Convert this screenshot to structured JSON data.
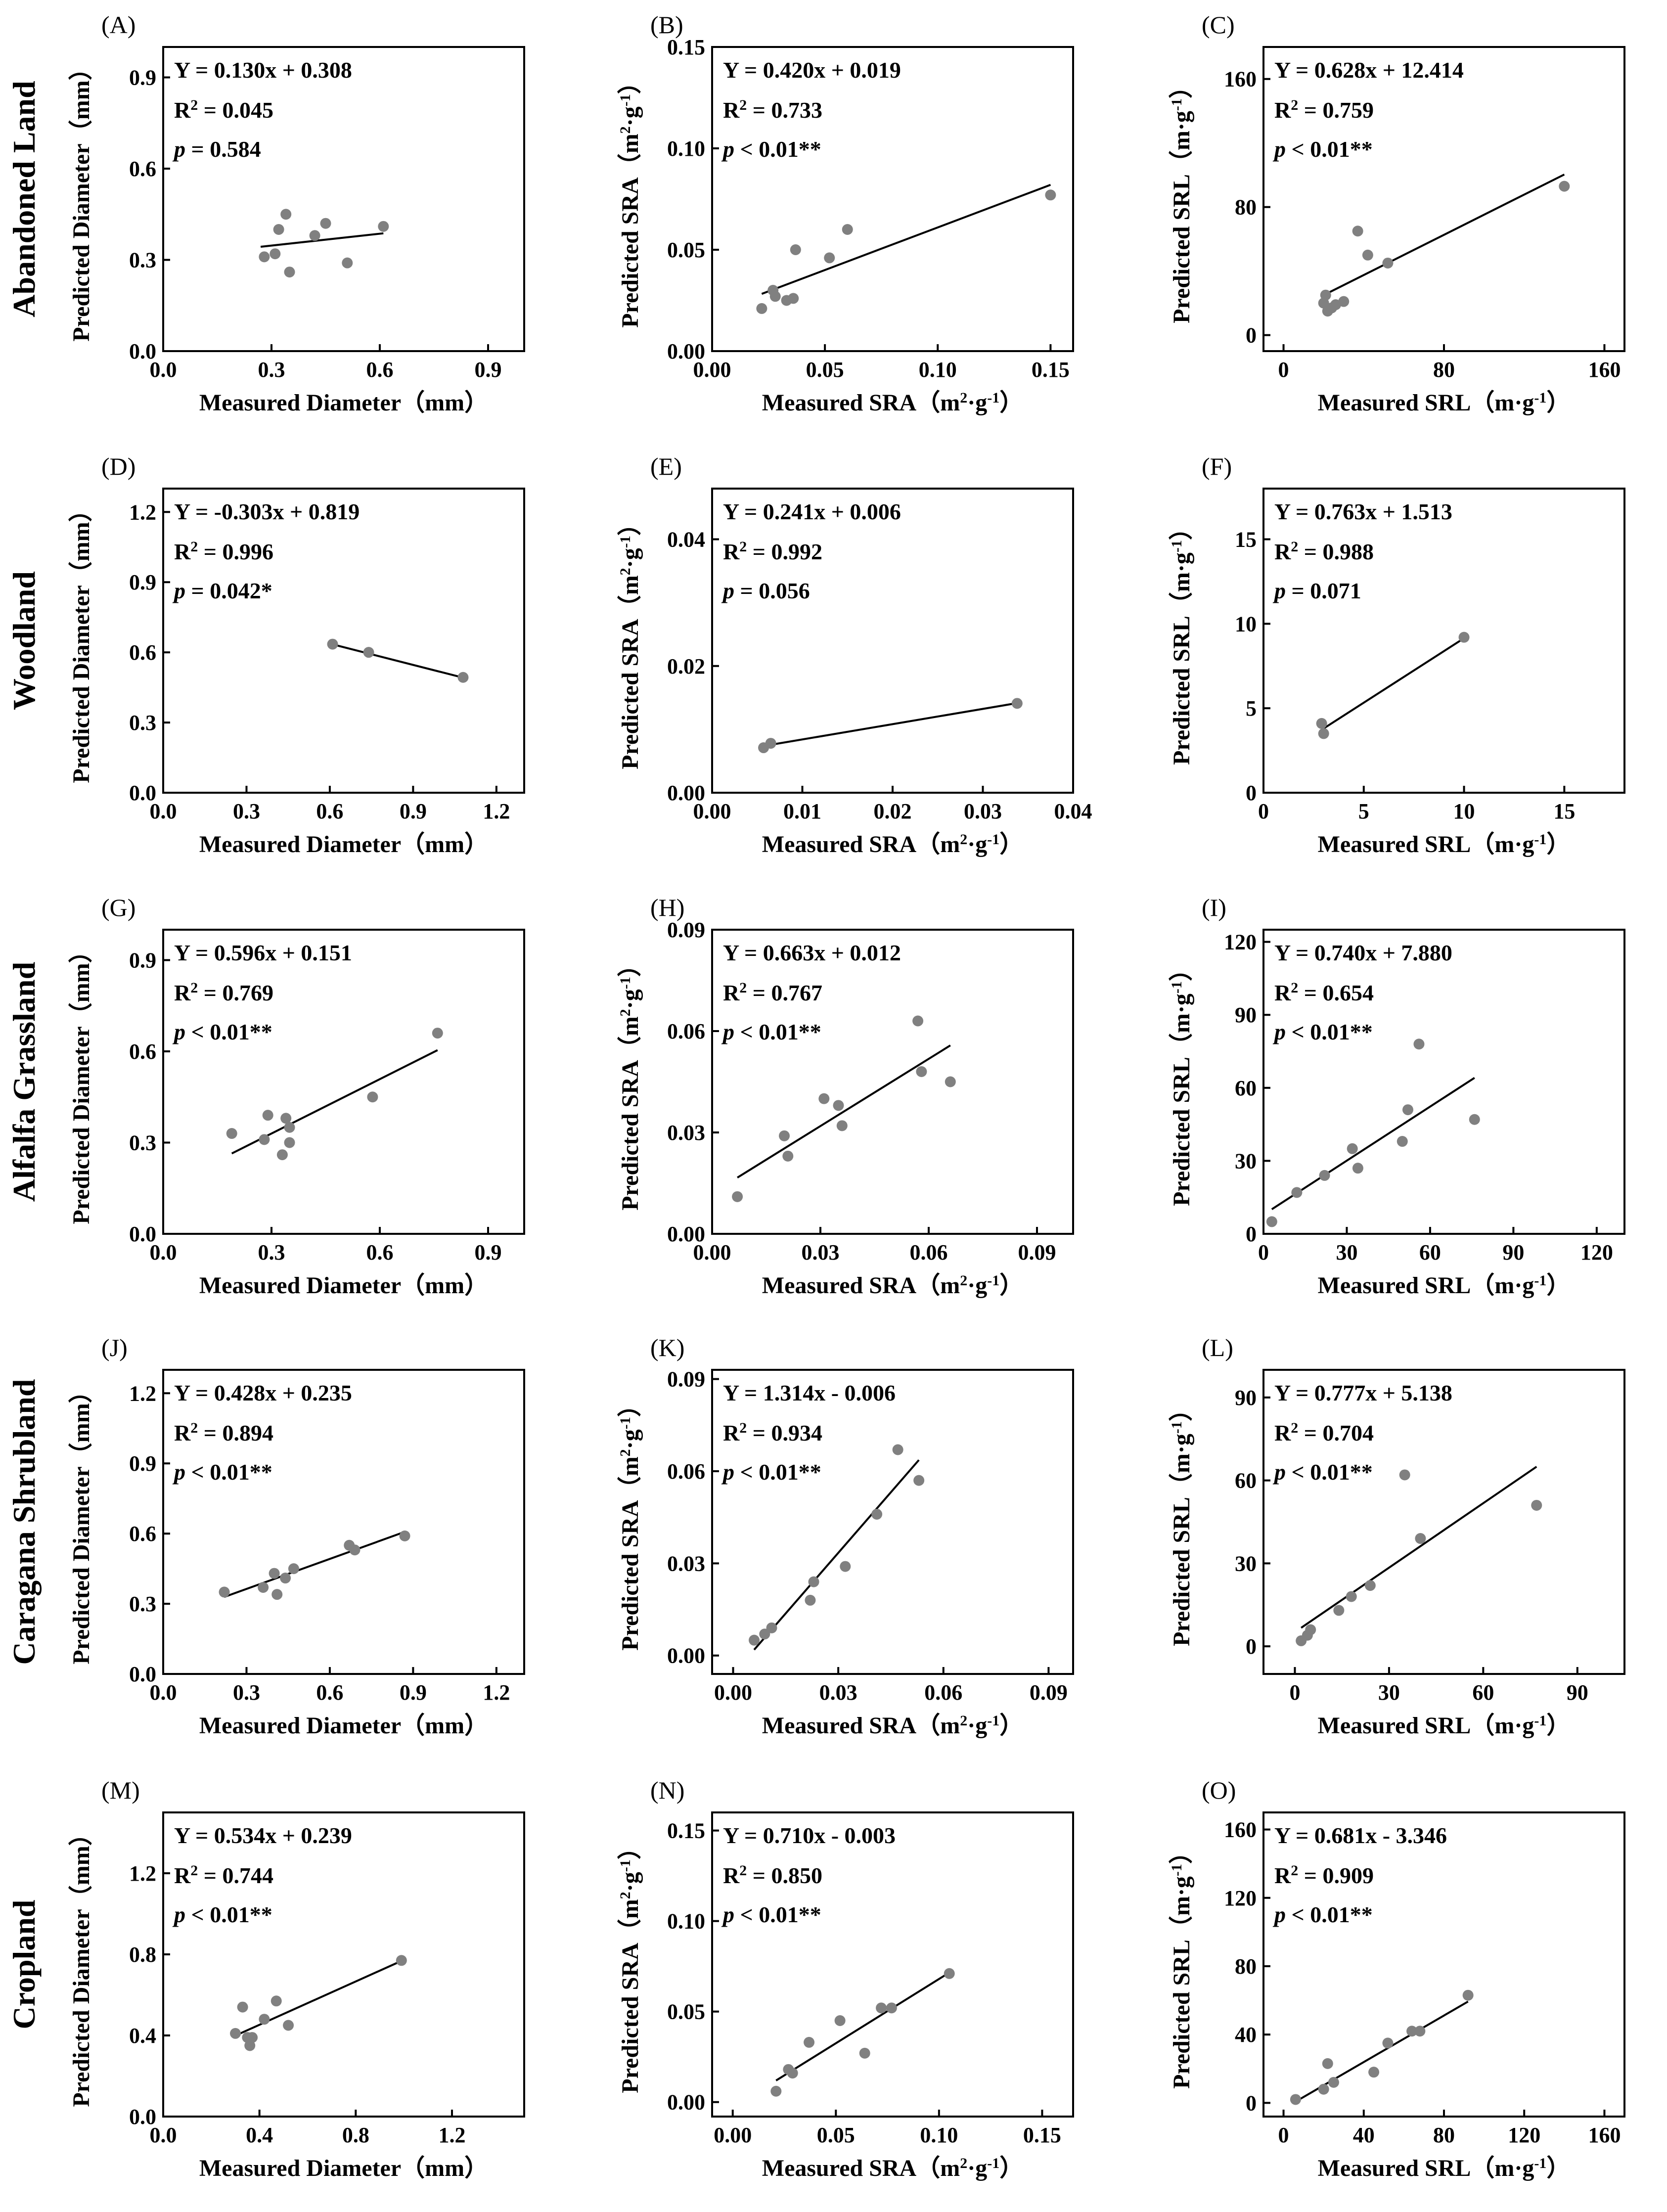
{
  "figure": {
    "rows": [
      "Abandoned Land",
      "Woodland",
      "Alfalfa Grassland",
      "Caragana Shrubland",
      "Cropland"
    ]
  },
  "style": {
    "point_color": "#808080",
    "line_color": "#000000",
    "axis_color": "#000000"
  },
  "chart_data": [
    {
      "type": "scatter",
      "panel": "(A)",
      "xlabel": "Measured Diameter（mm）",
      "ylabel": "Predicted Diameter（mm）",
      "xlim": [
        0,
        1.0
      ],
      "ylim": [
        0,
        1.0
      ],
      "xticks": [
        "0.0",
        "0.3",
        "0.6",
        "0.9"
      ],
      "xtick_values": [
        0,
        0.3,
        0.6,
        0.9
      ],
      "yticks": [
        "0.0",
        "0.3",
        "0.6",
        "0.9"
      ],
      "ytick_values": [
        0,
        0.3,
        0.6,
        0.9
      ],
      "equation": "Y = 0.130x + 0.308",
      "r2_value": "= 0.045",
      "p_text": "= 0.584",
      "x": [
        0.28,
        0.31,
        0.32,
        0.34,
        0.35,
        0.42,
        0.45,
        0.51,
        0.61
      ],
      "y": [
        0.31,
        0.32,
        0.4,
        0.45,
        0.26,
        0.38,
        0.42,
        0.29,
        0.41
      ],
      "fit": {
        "slope": 0.13,
        "intercept": 0.308,
        "x_range": [
          0.27,
          0.61
        ]
      }
    },
    {
      "type": "scatter",
      "panel": "(B)",
      "xlabel": "Measured SRA（m²·g⁻¹）",
      "ylabel": "Predicted SRA（m²·g⁻¹）",
      "xlim": [
        0,
        0.16
      ],
      "ylim": [
        0,
        0.15
      ],
      "xticks": [
        "0.00",
        "0.05",
        "0.10",
        "0.15"
      ],
      "xtick_values": [
        0,
        0.05,
        0.1,
        0.15
      ],
      "yticks": [
        "0.00",
        "0.05",
        "0.10",
        "0.15"
      ],
      "ytick_values": [
        0,
        0.05,
        0.1,
        0.15
      ],
      "equation": "Y = 0.420x + 0.019",
      "r2_value": "= 0.733",
      "p_text": "< 0.01**",
      "x": [
        0.022,
        0.027,
        0.028,
        0.033,
        0.036,
        0.037,
        0.052,
        0.06,
        0.15
      ],
      "y": [
        0.021,
        0.03,
        0.027,
        0.025,
        0.026,
        0.05,
        0.046,
        0.06,
        0.077
      ],
      "fit": {
        "slope": 0.42,
        "intercept": 0.019,
        "x_range": [
          0.022,
          0.15
        ]
      }
    },
    {
      "type": "scatter",
      "panel": "(C)",
      "xlabel": "Measured SRL（m·g⁻¹）",
      "ylabel": "Predicted SRL（m·g⁻¹）",
      "xlim": [
        -10,
        170
      ],
      "ylim": [
        -10,
        180
      ],
      "xticks": [
        "0",
        "80",
        "160"
      ],
      "xtick_values": [
        0,
        80,
        160
      ],
      "yticks": [
        "0",
        "80",
        "160"
      ],
      "ytick_values": [
        0,
        80,
        160
      ],
      "equation": "Y = 0.628x + 12.414",
      "r2_value": "= 0.759",
      "p_text": "< 0.01**",
      "x": [
        20,
        21,
        22,
        24,
        26,
        30,
        37,
        42,
        52,
        140
      ],
      "y": [
        20,
        25,
        15,
        17,
        19,
        21,
        65,
        50,
        45,
        93
      ],
      "fit": {
        "slope": 0.628,
        "intercept": 12.414,
        "x_range": [
          20,
          140
        ]
      }
    },
    {
      "type": "scatter",
      "panel": "(D)",
      "xlabel": "Measured Diameter（mm）",
      "ylabel": "Predicted Diameter（mm）",
      "xlim": [
        0,
        1.3
      ],
      "ylim": [
        0,
        1.3
      ],
      "xticks": [
        "0.0",
        "0.3",
        "0.6",
        "0.9",
        "1.2"
      ],
      "xtick_values": [
        0,
        0.3,
        0.6,
        0.9,
        1.2
      ],
      "yticks": [
        "0.0",
        "0.3",
        "0.6",
        "0.9",
        "1.2"
      ],
      "ytick_values": [
        0,
        0.3,
        0.6,
        0.9,
        1.2
      ],
      "equation": "Y = -0.303x + 0.819",
      "r2_value": "= 0.996",
      "p_text": "= 0.042*",
      "x": [
        0.61,
        0.74,
        1.08
      ],
      "y": [
        0.635,
        0.6,
        0.493
      ],
      "fit": {
        "slope": -0.303,
        "intercept": 0.819,
        "x_range": [
          0.61,
          1.08
        ]
      }
    },
    {
      "type": "scatter",
      "panel": "(E)",
      "xlabel": "Measured SRA（m²·g⁻¹）",
      "ylabel": "Predicted SRA（m²·g⁻¹）",
      "xlim": [
        0,
        0.04
      ],
      "ylim": [
        0,
        0.048
      ],
      "xticks": [
        "0.00",
        "0.01",
        "0.02",
        "0.03",
        "0.04"
      ],
      "xtick_values": [
        0,
        0.01,
        0.02,
        0.03,
        0.04
      ],
      "yticks": [
        "0.00",
        "0.02",
        "0.04"
      ],
      "ytick_values": [
        0,
        0.02,
        0.04
      ],
      "equation": "Y = 0.241x + 0.006",
      "r2_value": "= 0.992",
      "p_text": "= 0.056",
      "x": [
        0.0057,
        0.0065,
        0.0338
      ],
      "y": [
        0.0071,
        0.0078,
        0.0141
      ],
      "fit": {
        "slope": 0.241,
        "intercept": 0.006,
        "x_range": [
          0.0057,
          0.0338
        ]
      }
    },
    {
      "type": "scatter",
      "panel": "(F)",
      "xlabel": "Measured SRL（m·g⁻¹）",
      "ylabel": "Predicted SRL（m·g⁻¹）",
      "xlim": [
        0,
        18
      ],
      "ylim": [
        0,
        18
      ],
      "xticks": [
        "0",
        "5",
        "10",
        "15"
      ],
      "xtick_values": [
        0,
        5,
        10,
        15
      ],
      "yticks": [
        "0",
        "5",
        "10",
        "15"
      ],
      "ytick_values": [
        0,
        5,
        10,
        15
      ],
      "equation": "Y = 0.763x + 1.513",
      "r2_value": "= 0.988",
      "p_text": "= 0.071",
      "x": [
        2.9,
        3.0,
        10.0
      ],
      "y": [
        4.1,
        3.5,
        9.2
      ],
      "fit": {
        "slope": 0.763,
        "intercept": 1.513,
        "x_range": [
          3.0,
          10.0
        ]
      }
    },
    {
      "type": "scatter",
      "panel": "(G)",
      "xlabel": "Measured Diameter（mm）",
      "ylabel": "Predicted Diameter（mm）",
      "xlim": [
        0,
        1.0
      ],
      "ylim": [
        0,
        1.0
      ],
      "xticks": [
        "0.0",
        "0.3",
        "0.6",
        "0.9"
      ],
      "xtick_values": [
        0,
        0.3,
        0.6,
        0.9
      ],
      "yticks": [
        "0.0",
        "0.3",
        "0.6",
        "0.9"
      ],
      "ytick_values": [
        0,
        0.3,
        0.6,
        0.9
      ],
      "equation": "Y = 0.596x + 0.151",
      "r2_value": "= 0.769",
      "p_text": "< 0.01**",
      "x": [
        0.19,
        0.28,
        0.29,
        0.33,
        0.34,
        0.35,
        0.35,
        0.58,
        0.76
      ],
      "y": [
        0.33,
        0.31,
        0.39,
        0.26,
        0.38,
        0.3,
        0.35,
        0.45,
        0.66
      ],
      "fit": {
        "slope": 0.596,
        "intercept": 0.151,
        "x_range": [
          0.19,
          0.76
        ]
      }
    },
    {
      "type": "scatter",
      "panel": "(H)",
      "xlabel": "Measured SRA（m²·g⁻¹）",
      "ylabel": "Predicted SRA（m²·g⁻¹）",
      "xlim": [
        0,
        0.1
      ],
      "ylim": [
        0,
        0.09
      ],
      "xticks": [
        "0.00",
        "0.03",
        "0.06",
        "0.09"
      ],
      "xtick_values": [
        0,
        0.03,
        0.06,
        0.09
      ],
      "yticks": [
        "0.00",
        "0.03",
        "0.06",
        "0.09"
      ],
      "ytick_values": [
        0,
        0.03,
        0.06,
        0.09
      ],
      "equation": "Y = 0.663x + 0.012",
      "r2_value": "= 0.767",
      "p_text": "< 0.01**",
      "x": [
        0.007,
        0.02,
        0.021,
        0.031,
        0.035,
        0.036,
        0.057,
        0.058,
        0.066
      ],
      "y": [
        0.011,
        0.029,
        0.023,
        0.04,
        0.038,
        0.032,
        0.063,
        0.048,
        0.045
      ],
      "fit": {
        "slope": 0.663,
        "intercept": 0.012,
        "x_range": [
          0.007,
          0.066
        ]
      }
    },
    {
      "type": "scatter",
      "panel": "(I)",
      "xlabel": "Measured SRL（m·g⁻¹）",
      "ylabel": "Predicted SRL（m·g⁻¹）",
      "xlim": [
        0,
        130
      ],
      "ylim": [
        0,
        125
      ],
      "xticks": [
        "0",
        "30",
        "60",
        "90",
        "120"
      ],
      "xtick_values": [
        0,
        30,
        60,
        90,
        120
      ],
      "yticks": [
        "0",
        "30",
        "60",
        "90",
        "120"
      ],
      "ytick_values": [
        0,
        30,
        60,
        90,
        120
      ],
      "equation": "Y = 0.740x + 7.880",
      "r2_value": "= 0.654",
      "p_text": "< 0.01**",
      "x": [
        3,
        12,
        22,
        32,
        34,
        50,
        52,
        56,
        76
      ],
      "y": [
        5,
        17,
        24,
        35,
        27,
        38,
        51,
        78,
        47
      ],
      "fit": {
        "slope": 0.74,
        "intercept": 7.88,
        "x_range": [
          3,
          76
        ]
      }
    },
    {
      "type": "scatter",
      "panel": "(J)",
      "xlabel": "Measured Diameter（mm）",
      "ylabel": "Predicted Diameter（mm）",
      "xlim": [
        0,
        1.3
      ],
      "ylim": [
        0,
        1.3
      ],
      "xticks": [
        "0.0",
        "0.3",
        "0.6",
        "0.9",
        "1.2"
      ],
      "xtick_values": [
        0,
        0.3,
        0.6,
        0.9,
        1.2
      ],
      "yticks": [
        "0.0",
        "0.3",
        "0.6",
        "0.9",
        "1.2"
      ],
      "ytick_values": [
        0,
        0.3,
        0.6,
        0.9,
        1.2
      ],
      "equation": "Y = 0.428x + 0.235",
      "r2_value": "= 0.894",
      "p_text": "< 0.01**",
      "x": [
        0.22,
        0.36,
        0.4,
        0.41,
        0.44,
        0.47,
        0.67,
        0.69,
        0.87
      ],
      "y": [
        0.35,
        0.37,
        0.43,
        0.34,
        0.41,
        0.45,
        0.55,
        0.53,
        0.59
      ],
      "fit": {
        "slope": 0.428,
        "intercept": 0.235,
        "x_range": [
          0.22,
          0.87
        ]
      }
    },
    {
      "type": "scatter",
      "panel": "(K)",
      "xlabel": "Measured SRA（m²·g⁻¹）",
      "ylabel": "Predicted SRA（m²·g⁻¹）",
      "xlim": [
        -0.006,
        0.097
      ],
      "ylim": [
        -0.006,
        0.093
      ],
      "xticks": [
        "0.00",
        "0.03",
        "0.06",
        "0.09"
      ],
      "xtick_values": [
        0,
        0.03,
        0.06,
        0.09
      ],
      "yticks": [
        "0.00",
        "0.03",
        "0.06",
        "0.09"
      ],
      "ytick_values": [
        0,
        0.03,
        0.06,
        0.09
      ],
      "equation": "Y = 1.314x - 0.006",
      "r2_value": "= 0.934",
      "p_text": "< 0.01**",
      "x": [
        0.006,
        0.009,
        0.011,
        0.022,
        0.023,
        0.032,
        0.041,
        0.047,
        0.053
      ],
      "y": [
        0.005,
        0.007,
        0.009,
        0.018,
        0.024,
        0.029,
        0.046,
        0.067,
        0.057
      ],
      "fit": {
        "slope": 1.314,
        "intercept": -0.006,
        "x_range": [
          0.006,
          0.053
        ]
      }
    },
    {
      "type": "scatter",
      "panel": "(L)",
      "xlabel": "Measured SRL（m·g⁻¹）",
      "ylabel": "Predicted SRL（m·g⁻¹）",
      "xlim": [
        -10,
        105
      ],
      "ylim": [
        -10,
        100
      ],
      "xticks": [
        "0",
        "30",
        "60",
        "90"
      ],
      "xtick_values": [
        0,
        30,
        60,
        90
      ],
      "yticks": [
        "0",
        "30",
        "60",
        "90"
      ],
      "ytick_values": [
        0,
        30,
        60,
        90
      ],
      "equation": "Y = 0.777x + 5.138",
      "r2_value": "= 0.704",
      "p_text": "< 0.01**",
      "x": [
        2,
        4,
        5,
        14,
        18,
        24,
        35,
        40,
        77
      ],
      "y": [
        2,
        4,
        6,
        13,
        18,
        22,
        62,
        39,
        51
      ],
      "fit": {
        "slope": 0.777,
        "intercept": 5.138,
        "x_range": [
          2,
          77
        ]
      }
    },
    {
      "type": "scatter",
      "panel": "(M)",
      "xlabel": "Measured Diameter（mm）",
      "ylabel": "Predicted Diameter（mm）",
      "xlim": [
        0,
        1.5
      ],
      "ylim": [
        0,
        1.5
      ],
      "xticks": [
        "0.0",
        "0.4",
        "0.8",
        "1.2"
      ],
      "xtick_values": [
        0,
        0.4,
        0.8,
        1.2
      ],
      "yticks": [
        "0.0",
        "0.4",
        "0.8",
        "1.2"
      ],
      "ytick_values": [
        0,
        0.4,
        0.8,
        1.2
      ],
      "equation": "Y = 0.534x + 0.239",
      "r2_value": "= 0.744",
      "p_text": "< 0.01**",
      "x": [
        0.3,
        0.33,
        0.35,
        0.36,
        0.37,
        0.42,
        0.47,
        0.52,
        0.99
      ],
      "y": [
        0.41,
        0.54,
        0.39,
        0.35,
        0.39,
        0.48,
        0.57,
        0.45,
        0.77
      ],
      "fit": {
        "slope": 0.534,
        "intercept": 0.239,
        "x_range": [
          0.3,
          0.99
        ]
      }
    },
    {
      "type": "scatter",
      "panel": "(N)",
      "xlabel": "Measured SRA（m²·g⁻¹）",
      "ylabel": "Predicted SRA（m²·g⁻¹）",
      "xlim": [
        -0.01,
        0.165
      ],
      "ylim": [
        -0.008,
        0.16
      ],
      "xticks": [
        "0.00",
        "0.05",
        "0.10",
        "0.15"
      ],
      "xtick_values": [
        0,
        0.05,
        0.1,
        0.15
      ],
      "yticks": [
        "0.00",
        "0.05",
        "0.10",
        "0.15"
      ],
      "ytick_values": [
        0,
        0.05,
        0.1,
        0.15
      ],
      "equation": "Y = 0.710x - 0.003",
      "r2_value": "= 0.850",
      "p_text": "< 0.01**",
      "x": [
        0.021,
        0.027,
        0.029,
        0.037,
        0.052,
        0.064,
        0.072,
        0.077,
        0.105
      ],
      "y": [
        0.006,
        0.018,
        0.016,
        0.033,
        0.045,
        0.027,
        0.052,
        0.052,
        0.071
      ],
      "fit": {
        "slope": 0.71,
        "intercept": -0.003,
        "x_range": [
          0.021,
          0.105
        ]
      }
    },
    {
      "type": "scatter",
      "panel": "(O)",
      "xlabel": "Measured SRL（m·g⁻¹）",
      "ylabel": "Predicted SRL（m·g⁻¹）",
      "xlim": [
        -10,
        170
      ],
      "ylim": [
        -8,
        170
      ],
      "xticks": [
        "0",
        "40",
        "80",
        "120",
        "160"
      ],
      "xtick_values": [
        0,
        40,
        80,
        120,
        160
      ],
      "yticks": [
        "0",
        "40",
        "80",
        "120",
        "160"
      ],
      "ytick_values": [
        0,
        40,
        80,
        120,
        160
      ],
      "equation": "Y = 0.681x - 3.346",
      "r2_value": "= 0.909",
      "p_text": "< 0.01**",
      "x": [
        6,
        20,
        22,
        25,
        45,
        52,
        64,
        68,
        92
      ],
      "y": [
        2,
        8,
        23,
        12,
        18,
        35,
        42,
        42,
        63
      ],
      "fit": {
        "slope": 0.681,
        "intercept": -3.346,
        "x_range": [
          6,
          92
        ]
      }
    }
  ]
}
